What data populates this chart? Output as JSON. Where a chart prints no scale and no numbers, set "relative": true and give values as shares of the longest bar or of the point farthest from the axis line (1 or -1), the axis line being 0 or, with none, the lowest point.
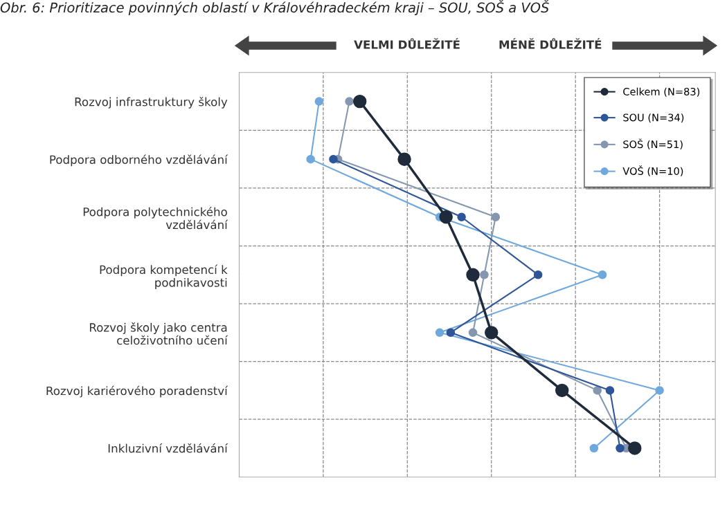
{
  "chart_data": {
    "type": "line",
    "orientation": "horizontal",
    "relative": true,
    "title": "Obr. 6: Prioritizace povinných oblastí v Královéhradeckém kraji – SOU, SOŠ a VOŠ",
    "annotations": [
      "VELMI DŮLEŽITÉ",
      "MÉNĚ DŮLEŽITÉ"
    ],
    "categories": [
      "Rozvoj infrastruktury školy",
      "Podpora odborného vzdělávání",
      "Podpora polytechnického\nvzdělávání",
      "Podpora kompetencí k\npodnikavosti",
      "Rozvoj školy jako centra\nceloživotního učení",
      "Rozvoj kariérového poradenství",
      "Inkluzivní vzdělávání"
    ],
    "series": [
      {
        "name": "Celkem (N=83)",
        "color": "#1f2a3a",
        "values": [
          0.287,
          0.393,
          0.492,
          0.556,
          0.6,
          0.768,
          0.941
        ]
      },
      {
        "name": "SOU (N=34)",
        "color": "#2e5597",
        "values": [
          null,
          0.224,
          0.529,
          0.711,
          0.503,
          0.882,
          0.906
        ]
      },
      {
        "name": "SOŠ (N=51)",
        "color": "#8496b0",
        "values": [
          0.262,
          0.235,
          0.61,
          0.583,
          0.556,
          0.852,
          0.921
        ]
      },
      {
        "name": "VOŠ (N=10)",
        "color": "#6fa8dc",
        "values": [
          0.19,
          0.17,
          0.477,
          0.864,
          0.477,
          1.0,
          0.844
        ]
      }
    ],
    "marker": "circle",
    "grid": true,
    "legend": "top right"
  }
}
